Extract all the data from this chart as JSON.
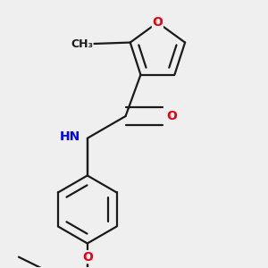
{
  "bg_color": "#efefef",
  "bond_color": "#1a1a1a",
  "bond_width": 1.6,
  "atom_colors": {
    "O": "#e8000d",
    "N": "#0000ff",
    "C": "#1a1a1a"
  },
  "font_size_atom": 10,
  "font_size_methyl": 9
}
